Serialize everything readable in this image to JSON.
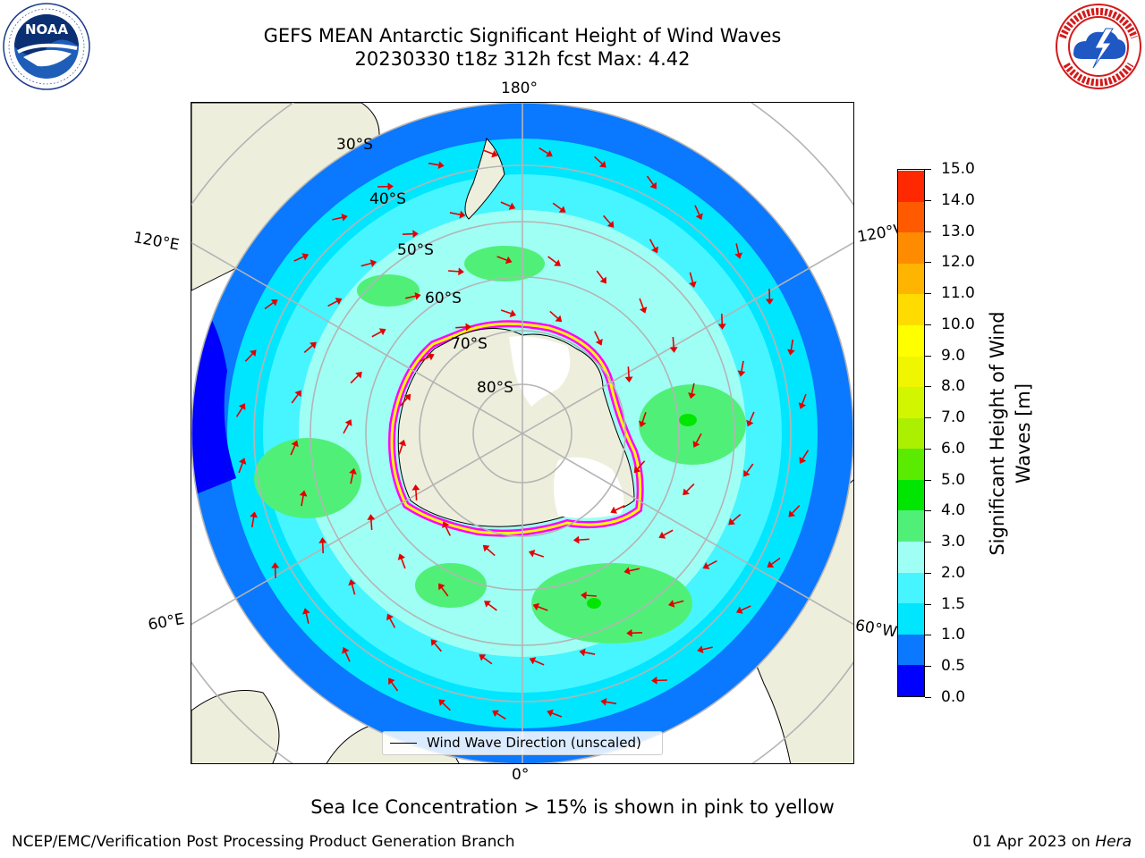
{
  "header": {
    "title_line1": "GEFS MEAN Antarctic Significant Height of Wind Waves",
    "title_line2": "20230330 t18z 312h fcst   Max: 4.42"
  },
  "logos": {
    "left": "noaa-logo",
    "right": "national-weather-service-logo"
  },
  "map": {
    "projection": "south-polar-stereographic",
    "longitude_labels": {
      "top": "180°",
      "bottom": "0°",
      "upper_left": "120°E",
      "lower_left": "60°E",
      "upper_right": "120°W",
      "lower_right": "60°W"
    },
    "latitude_labels": [
      "30°S",
      "40°S",
      "50°S",
      "60°S",
      "70°S",
      "80°S"
    ],
    "legend": {
      "label": "Wind Wave Direction (unscaled)"
    },
    "colors": {
      "land": "#eeeedd",
      "ice_shelf": "#ffffff",
      "grid": "#b4b4b4",
      "arrow": "#e30000",
      "sea_ice_inner": "#ff00ff",
      "sea_ice_outer": "#ffff00"
    }
  },
  "colorbar": {
    "title": "Significant Height of Wind Waves [m]",
    "title_lines": [
      "Significant Height of Wind",
      "Waves [m]"
    ],
    "tick_labels": [
      "0.0",
      "0.5",
      "1.0",
      "1.5",
      "2.0",
      "3.0",
      "4.0",
      "5.0",
      "6.0",
      "7.0",
      "8.0",
      "9.0",
      "10.0",
      "11.0",
      "12.0",
      "13.0",
      "14.0",
      "15.0"
    ],
    "colors": [
      "#0000ff",
      "#0a78ff",
      "#00e6ff",
      "#46f5ff",
      "#a0fff5",
      "#50f078",
      "#00e600",
      "#5aeb00",
      "#aaf000",
      "#d2f500",
      "#f0f500",
      "#ffff00",
      "#ffdc00",
      "#ffb400",
      "#ff8c00",
      "#ff5a00",
      "#ff2800"
    ]
  },
  "caption": "Sea Ice Concentration > 15% is shown in pink to yellow",
  "footer": {
    "left": "NCEP/EMC/Verification Post Processing Product Generation Branch",
    "right_date": "01 Apr 2023 on",
    "right_host": "Hera"
  }
}
